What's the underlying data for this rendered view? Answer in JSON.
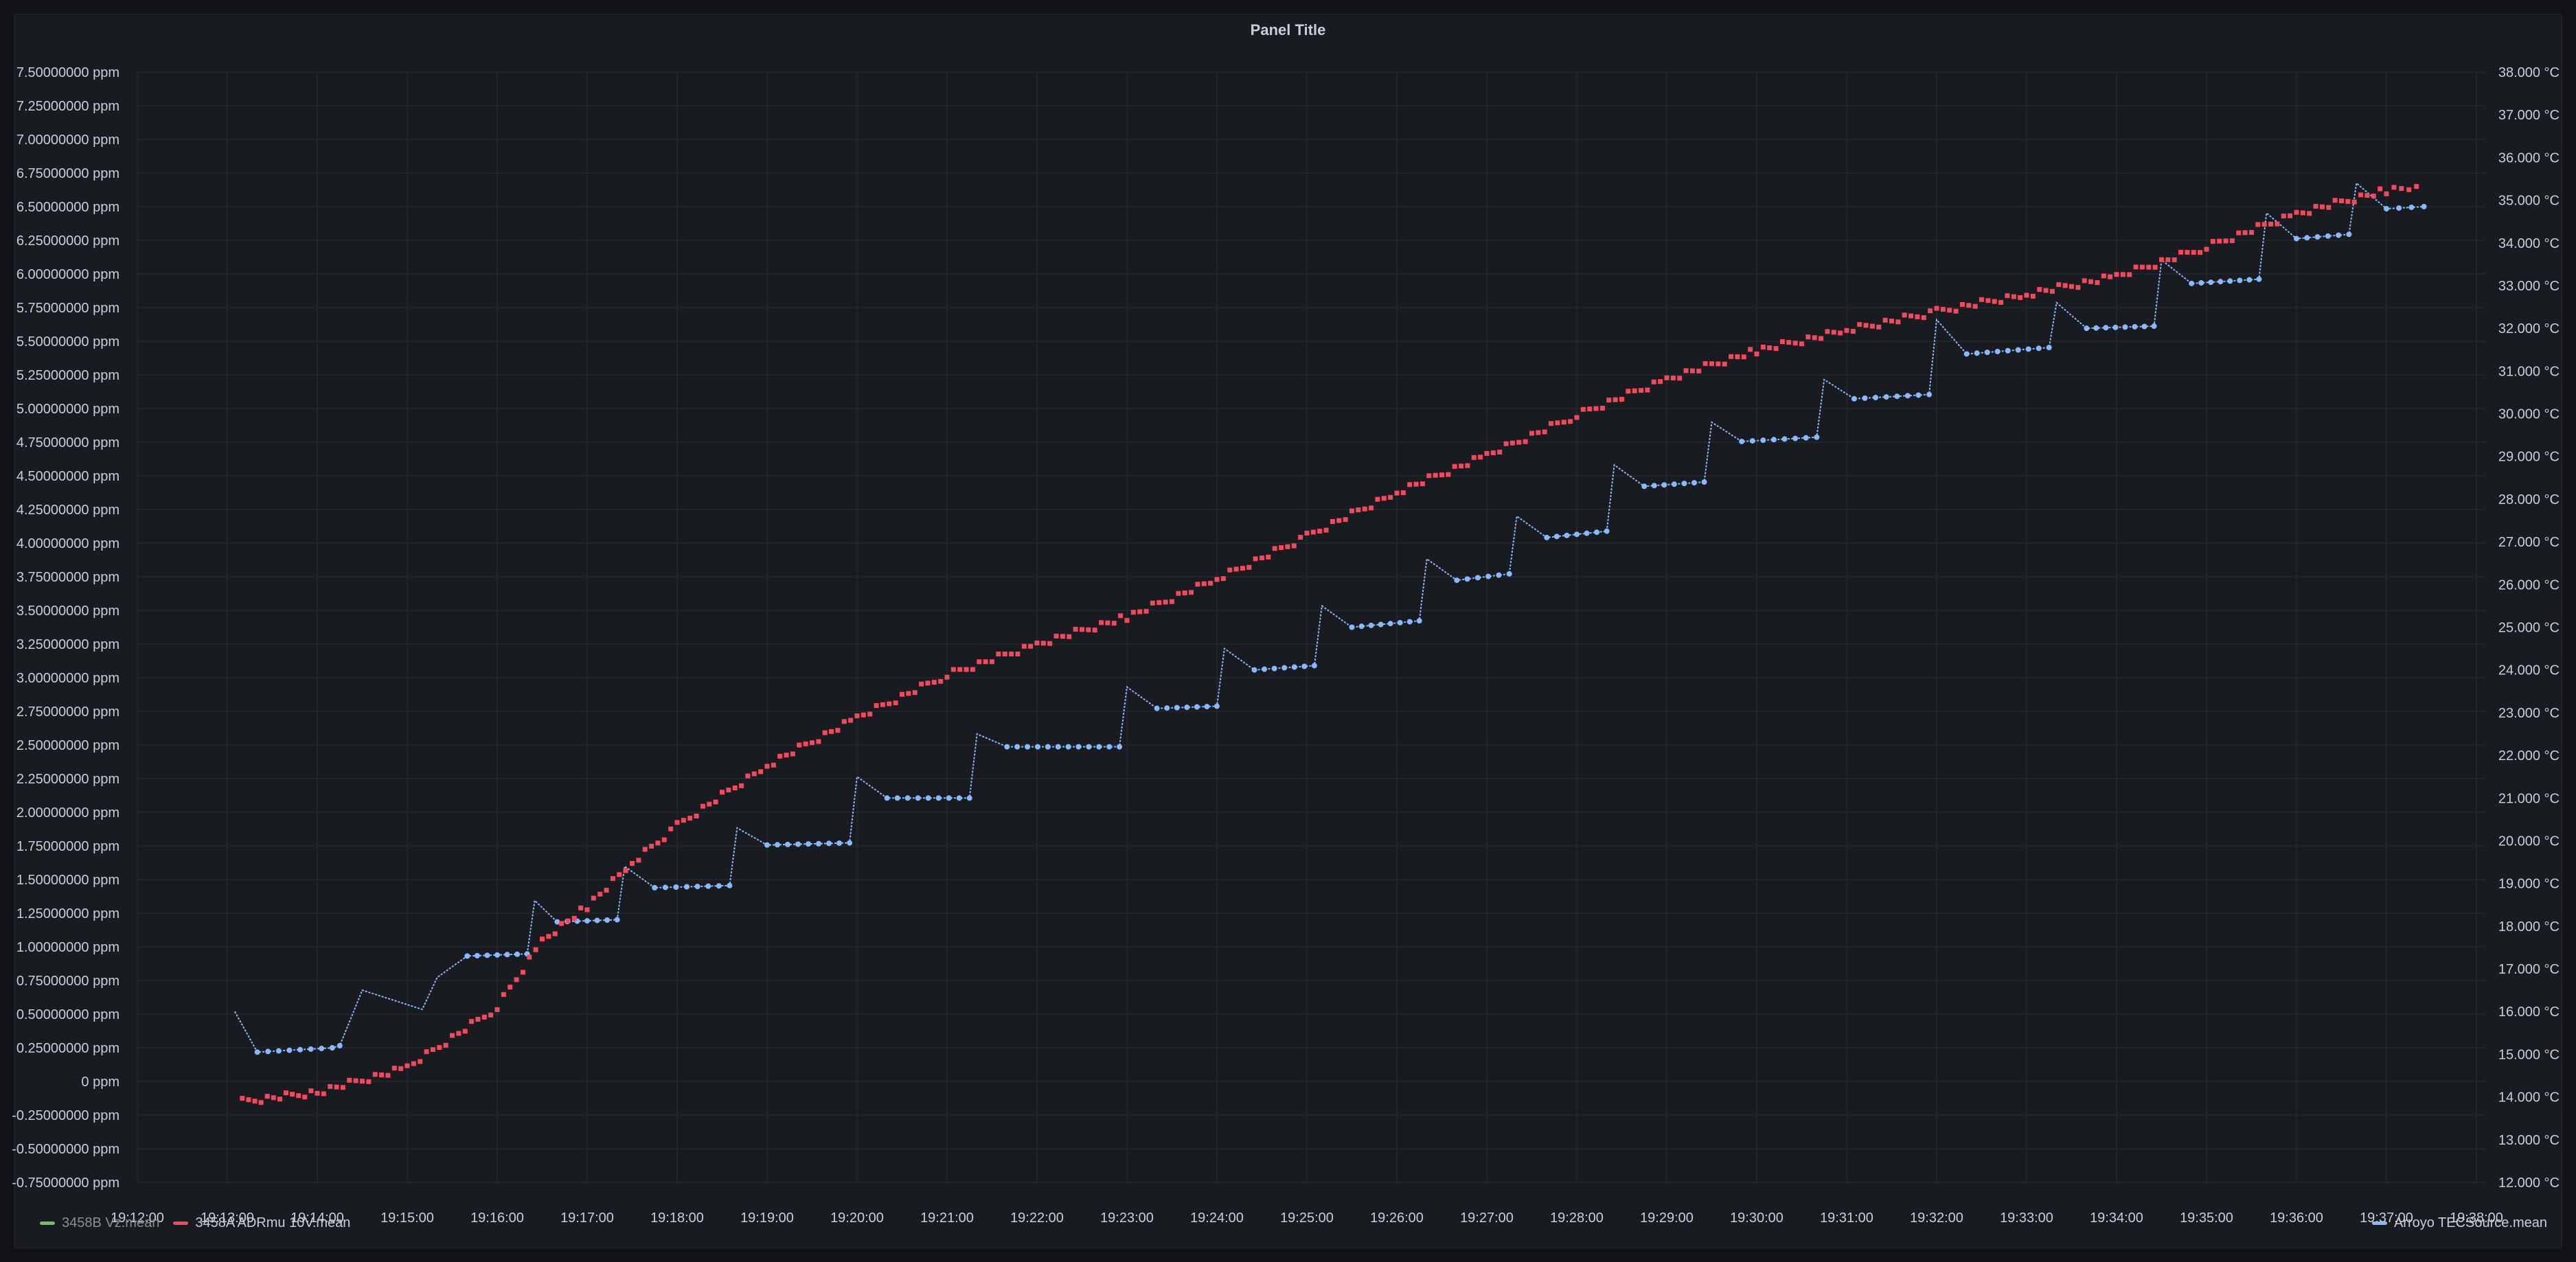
{
  "panel": {
    "title": "Panel Title"
  },
  "colors": {
    "green": "#73bf69",
    "red": "#f2495c",
    "blue": "#8ab8ff",
    "grid": "#2a2d33",
    "text": "#ccccdc"
  },
  "legend": [
    {
      "name": "3458B Vz.mean",
      "color": "#73bf69",
      "dim": true
    },
    {
      "name": "3458A ADRmu 10V.mean",
      "color": "#f2495c",
      "dim": false
    },
    {
      "name": "Arroyo TECSource.mean",
      "color": "#8ab8ff",
      "dim": false
    }
  ],
  "chart_data": {
    "type": "line",
    "title": "Panel Title",
    "x_ticks": [
      "19:12:00",
      "19:13:00",
      "19:14:00",
      "19:15:00",
      "19:16:00",
      "19:17:00",
      "19:18:00",
      "19:19:00",
      "19:20:00",
      "19:21:00",
      "19:22:00",
      "19:23:00",
      "19:24:00",
      "19:25:00",
      "19:26:00",
      "19:27:00",
      "19:28:00",
      "19:29:00",
      "19:30:00",
      "19:31:00",
      "19:32:00",
      "19:33:00",
      "19:34:00",
      "19:35:00",
      "19:36:00",
      "19:37:00",
      "19:38:00"
    ],
    "x_range_minutes": [
      0,
      26
    ],
    "y_left": {
      "unit": "ppm",
      "range": [
        -0.75,
        7.5
      ],
      "ticks": [
        "7.50000000 ppm",
        "7.25000000 ppm",
        "7.00000000 ppm",
        "6.75000000 ppm",
        "6.50000000 ppm",
        "6.25000000 ppm",
        "6.00000000 ppm",
        "5.75000000 ppm",
        "5.50000000 ppm",
        "5.25000000 ppm",
        "5.00000000 ppm",
        "4.75000000 ppm",
        "4.50000000 ppm",
        "4.25000000 ppm",
        "4.00000000 ppm",
        "3.75000000 ppm",
        "3.50000000 ppm",
        "3.25000000 ppm",
        "3.00000000 ppm",
        "2.75000000 ppm",
        "2.50000000 ppm",
        "2.25000000 ppm",
        "2.00000000 ppm",
        "1.75000000 ppm",
        "1.50000000 ppm",
        "1.25000000 ppm",
        "1.00000000 ppm",
        "0.75000000 ppm",
        "0.50000000 ppm",
        "0.25000000 ppm",
        "0 ppm",
        "-0.25000000 ppm",
        "-0.50000000 ppm",
        "-0.75000000 ppm"
      ]
    },
    "y_right": {
      "unit": "°C",
      "range": [
        12.0,
        38.0
      ],
      "ticks": [
        "38.000 °C",
        "37.000 °C",
        "36.000 °C",
        "35.000 °C",
        "34.000 °C",
        "33.000 °C",
        "32.000 °C",
        "31.000 °C",
        "30.000 °C",
        "29.000 °C",
        "28.000 °C",
        "27.000 °C",
        "26.000 °C",
        "25.000 °C",
        "24.000 °C",
        "23.000 °C",
        "22.000 °C",
        "21.000 °C",
        "20.000 °C",
        "19.000 °C",
        "18.000 °C",
        "17.000 °C",
        "16.000 °C",
        "15.000 °C",
        "14.000 °C",
        "13.000 °C",
        "12.000 °C"
      ]
    },
    "series": [
      {
        "name": "3458A ADRmu 10V.mean",
        "axis": "left",
        "color": "#f2495c",
        "style": "points",
        "x": [
          "19:13:10",
          "19:14:00",
          "19:15:00",
          "19:16:00",
          "19:16:30",
          "19:17:00",
          "19:17:30",
          "19:18:00",
          "19:19:00",
          "19:20:00",
          "19:21:00",
          "19:22:00",
          "19:23:00",
          "19:24:00",
          "19:25:00",
          "19:26:00",
          "19:27:00",
          "19:28:00",
          "19:29:00",
          "19:30:00",
          "19:31:00",
          "19:32:00",
          "19:33:00",
          "19:34:00",
          "19:35:00",
          "19:36:00",
          "19:37:00",
          "19:37:20"
        ],
        "values": [
          -0.15,
          -0.08,
          0.1,
          0.55,
          1.05,
          1.3,
          1.62,
          1.9,
          2.35,
          2.7,
          3.02,
          3.25,
          3.45,
          3.73,
          4.05,
          4.38,
          4.65,
          4.95,
          5.22,
          5.43,
          5.58,
          5.72,
          5.85,
          5.98,
          6.2,
          6.45,
          6.62,
          6.65
        ]
      },
      {
        "name": "Arroyo TECSource.mean",
        "axis": "right",
        "color": "#8ab8ff",
        "style": "line",
        "x": [
          "19:13:05",
          "19:13:20",
          "19:14:10",
          "19:14:15",
          "19:14:30",
          "19:15:10",
          "19:15:20",
          "19:15:40",
          "19:16:20",
          "19:16:25",
          "19:16:40",
          "19:17:20",
          "19:17:25",
          "19:17:45",
          "19:18:35",
          "19:18:40",
          "19:19:00",
          "19:19:55",
          "19:20:00",
          "19:20:20",
          "19:21:15",
          "19:21:20",
          "19:21:40",
          "19:22:55",
          "19:23:00",
          "19:23:20",
          "19:24:00",
          "19:24:05",
          "19:24:25",
          "19:25:05",
          "19:25:10",
          "19:25:30",
          "19:26:15",
          "19:26:20",
          "19:26:40",
          "19:27:15",
          "19:27:20",
          "19:27:40",
          "19:28:20",
          "19:28:25",
          "19:28:45",
          "19:29:25",
          "19:29:30",
          "19:29:50",
          "19:30:40",
          "19:30:45",
          "19:31:05",
          "19:31:55",
          "19:32:00",
          "19:32:20",
          "19:33:15",
          "19:33:20",
          "19:33:40",
          "19:34:25",
          "19:34:30",
          "19:34:50",
          "19:35:35",
          "19:35:40",
          "19:36:00",
          "19:36:35",
          "19:36:40",
          "19:37:00",
          "19:37:25"
        ],
        "values": [
          16.0,
          15.05,
          15.15,
          15.2,
          16.5,
          16.05,
          16.8,
          17.3,
          17.35,
          18.6,
          18.1,
          18.15,
          19.4,
          18.9,
          18.95,
          20.3,
          19.9,
          19.95,
          21.5,
          21.0,
          21.0,
          22.5,
          22.2,
          22.2,
          23.6,
          23.1,
          23.15,
          24.5,
          24.0,
          24.1,
          25.5,
          25.0,
          25.15,
          26.6,
          26.1,
          26.25,
          27.6,
          27.1,
          27.25,
          28.8,
          28.3,
          28.4,
          29.8,
          29.35,
          29.45,
          30.8,
          30.35,
          30.45,
          32.2,
          31.4,
          31.55,
          32.6,
          32.0,
          32.05,
          33.6,
          33.05,
          33.15,
          34.7,
          34.1,
          34.2,
          35.4,
          34.8,
          34.85
        ]
      },
      {
        "name": "3458B Vz.mean",
        "axis": "left",
        "color": "#73bf69",
        "style": "line",
        "hidden": true,
        "x": [],
        "values": []
      }
    ],
    "grid": true,
    "legend_position": "bottom"
  }
}
